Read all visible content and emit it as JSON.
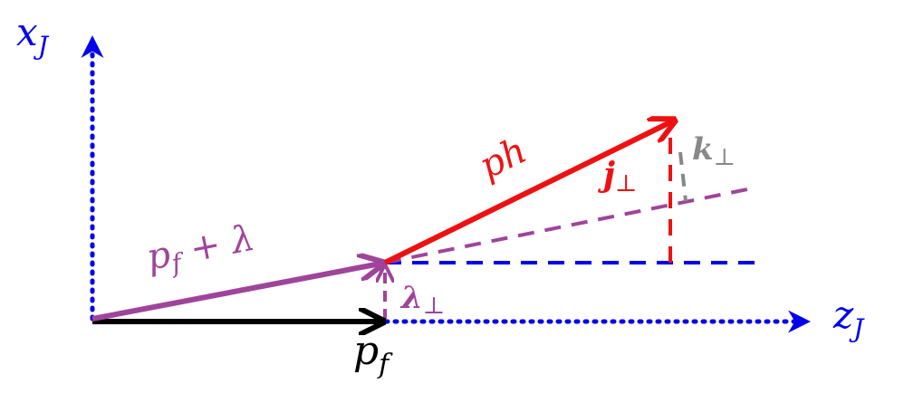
{
  "labels": {
    "x_axis": {
      "text": "x",
      "sub": "J"
    },
    "z_axis": {
      "text": "z",
      "sub": "J"
    },
    "p_f": {
      "text": "p",
      "sub": "f"
    },
    "p_f_lambda": {
      "text": "p",
      "sub": "f",
      "suffix": " + λ"
    },
    "p_h": {
      "text": "p",
      "sub": "h"
    },
    "j_perp": {
      "text": "j",
      "sub": "⊥"
    },
    "k_perp": {
      "text": "k",
      "sub": "⊥"
    },
    "lambda_perp": {
      "text": "λ",
      "sub": "⊥"
    }
  }
}
